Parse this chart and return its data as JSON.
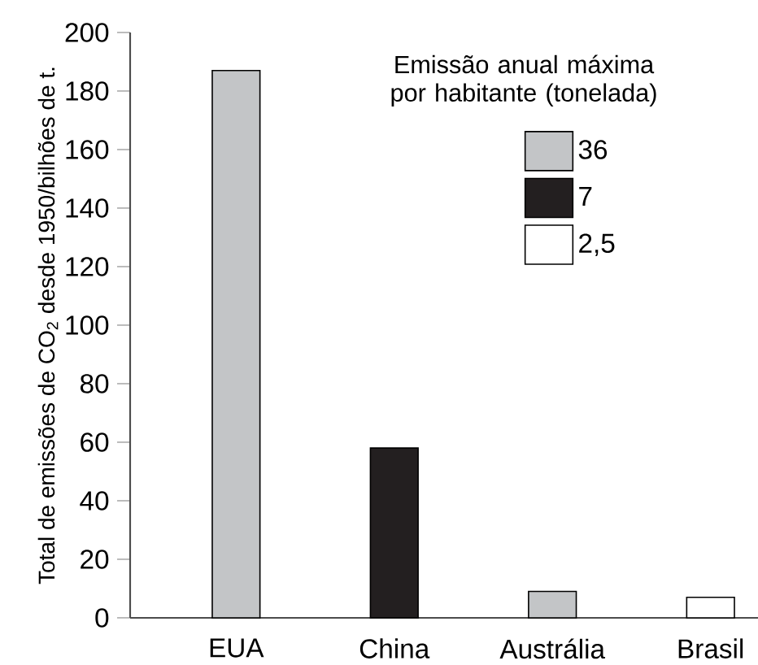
{
  "chart_data": {
    "type": "bar",
    "categories": [
      "EUA",
      "China",
      "Austrália",
      "Brasil"
    ],
    "ylabel": "Total de emissões de CO$_{2}$ desde 1950/bilhões de t.",
    "legend_title": "Emissão anual máxima por habitante (tonelada)",
    "series": [
      {
        "name": "36",
        "color": "#c3c5c7",
        "values": [
          187,
          null,
          9,
          null
        ]
      },
      {
        "name": "7",
        "color": "#231f20",
        "values": [
          null,
          58,
          null,
          null
        ]
      },
      {
        "name": "2,5",
        "color": "#ffffff",
        "values": [
          null,
          null,
          null,
          7
        ]
      }
    ],
    "ylim": [
      0,
      200
    ],
    "yticks": [
      0,
      20,
      40,
      60,
      80,
      100,
      120,
      140,
      160,
      180,
      200
    ],
    "legend": "top right"
  }
}
